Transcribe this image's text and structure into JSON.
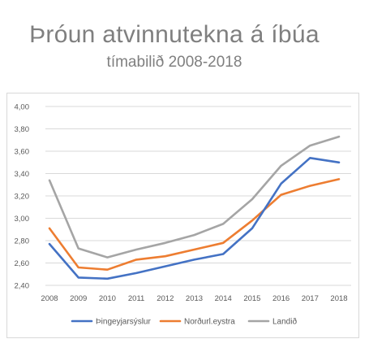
{
  "title": "Þróun atvinnutekna á íbúa",
  "subtitle": "tímabilið 2008-2018",
  "chart_data": {
    "type": "line",
    "title": "Þróun atvinnutekna á íbúa",
    "subtitle": "tímabilið 2008-2018",
    "xlabel": "",
    "ylabel": "",
    "x": [
      "2008",
      "2009",
      "2010",
      "2011",
      "2012",
      "2013",
      "2014",
      "2015",
      "2016",
      "2017",
      "2018"
    ],
    "ylim": [
      2.4,
      4.0
    ],
    "yticks": [
      "2,40",
      "2,60",
      "2,80",
      "3,00",
      "3,20",
      "3,40",
      "3,60",
      "3,80",
      "4,00"
    ],
    "grid": true,
    "legend": "bottom",
    "series": [
      {
        "name": "Þingeyjarsýslur",
        "color": "#4472c4",
        "values": [
          2.77,
          2.47,
          2.46,
          2.51,
          2.57,
          2.63,
          2.68,
          2.91,
          3.31,
          3.54,
          3.5
        ]
      },
      {
        "name": "Norðurl.eystra",
        "color": "#ed7d31",
        "values": [
          2.91,
          2.56,
          2.54,
          2.63,
          2.66,
          2.72,
          2.78,
          2.98,
          3.21,
          3.29,
          3.35
        ]
      },
      {
        "name": "Landið",
        "color": "#a5a5a5",
        "values": [
          3.34,
          2.73,
          2.65,
          2.72,
          2.78,
          2.85,
          2.95,
          3.17,
          3.47,
          3.65,
          3.73
        ]
      }
    ]
  }
}
